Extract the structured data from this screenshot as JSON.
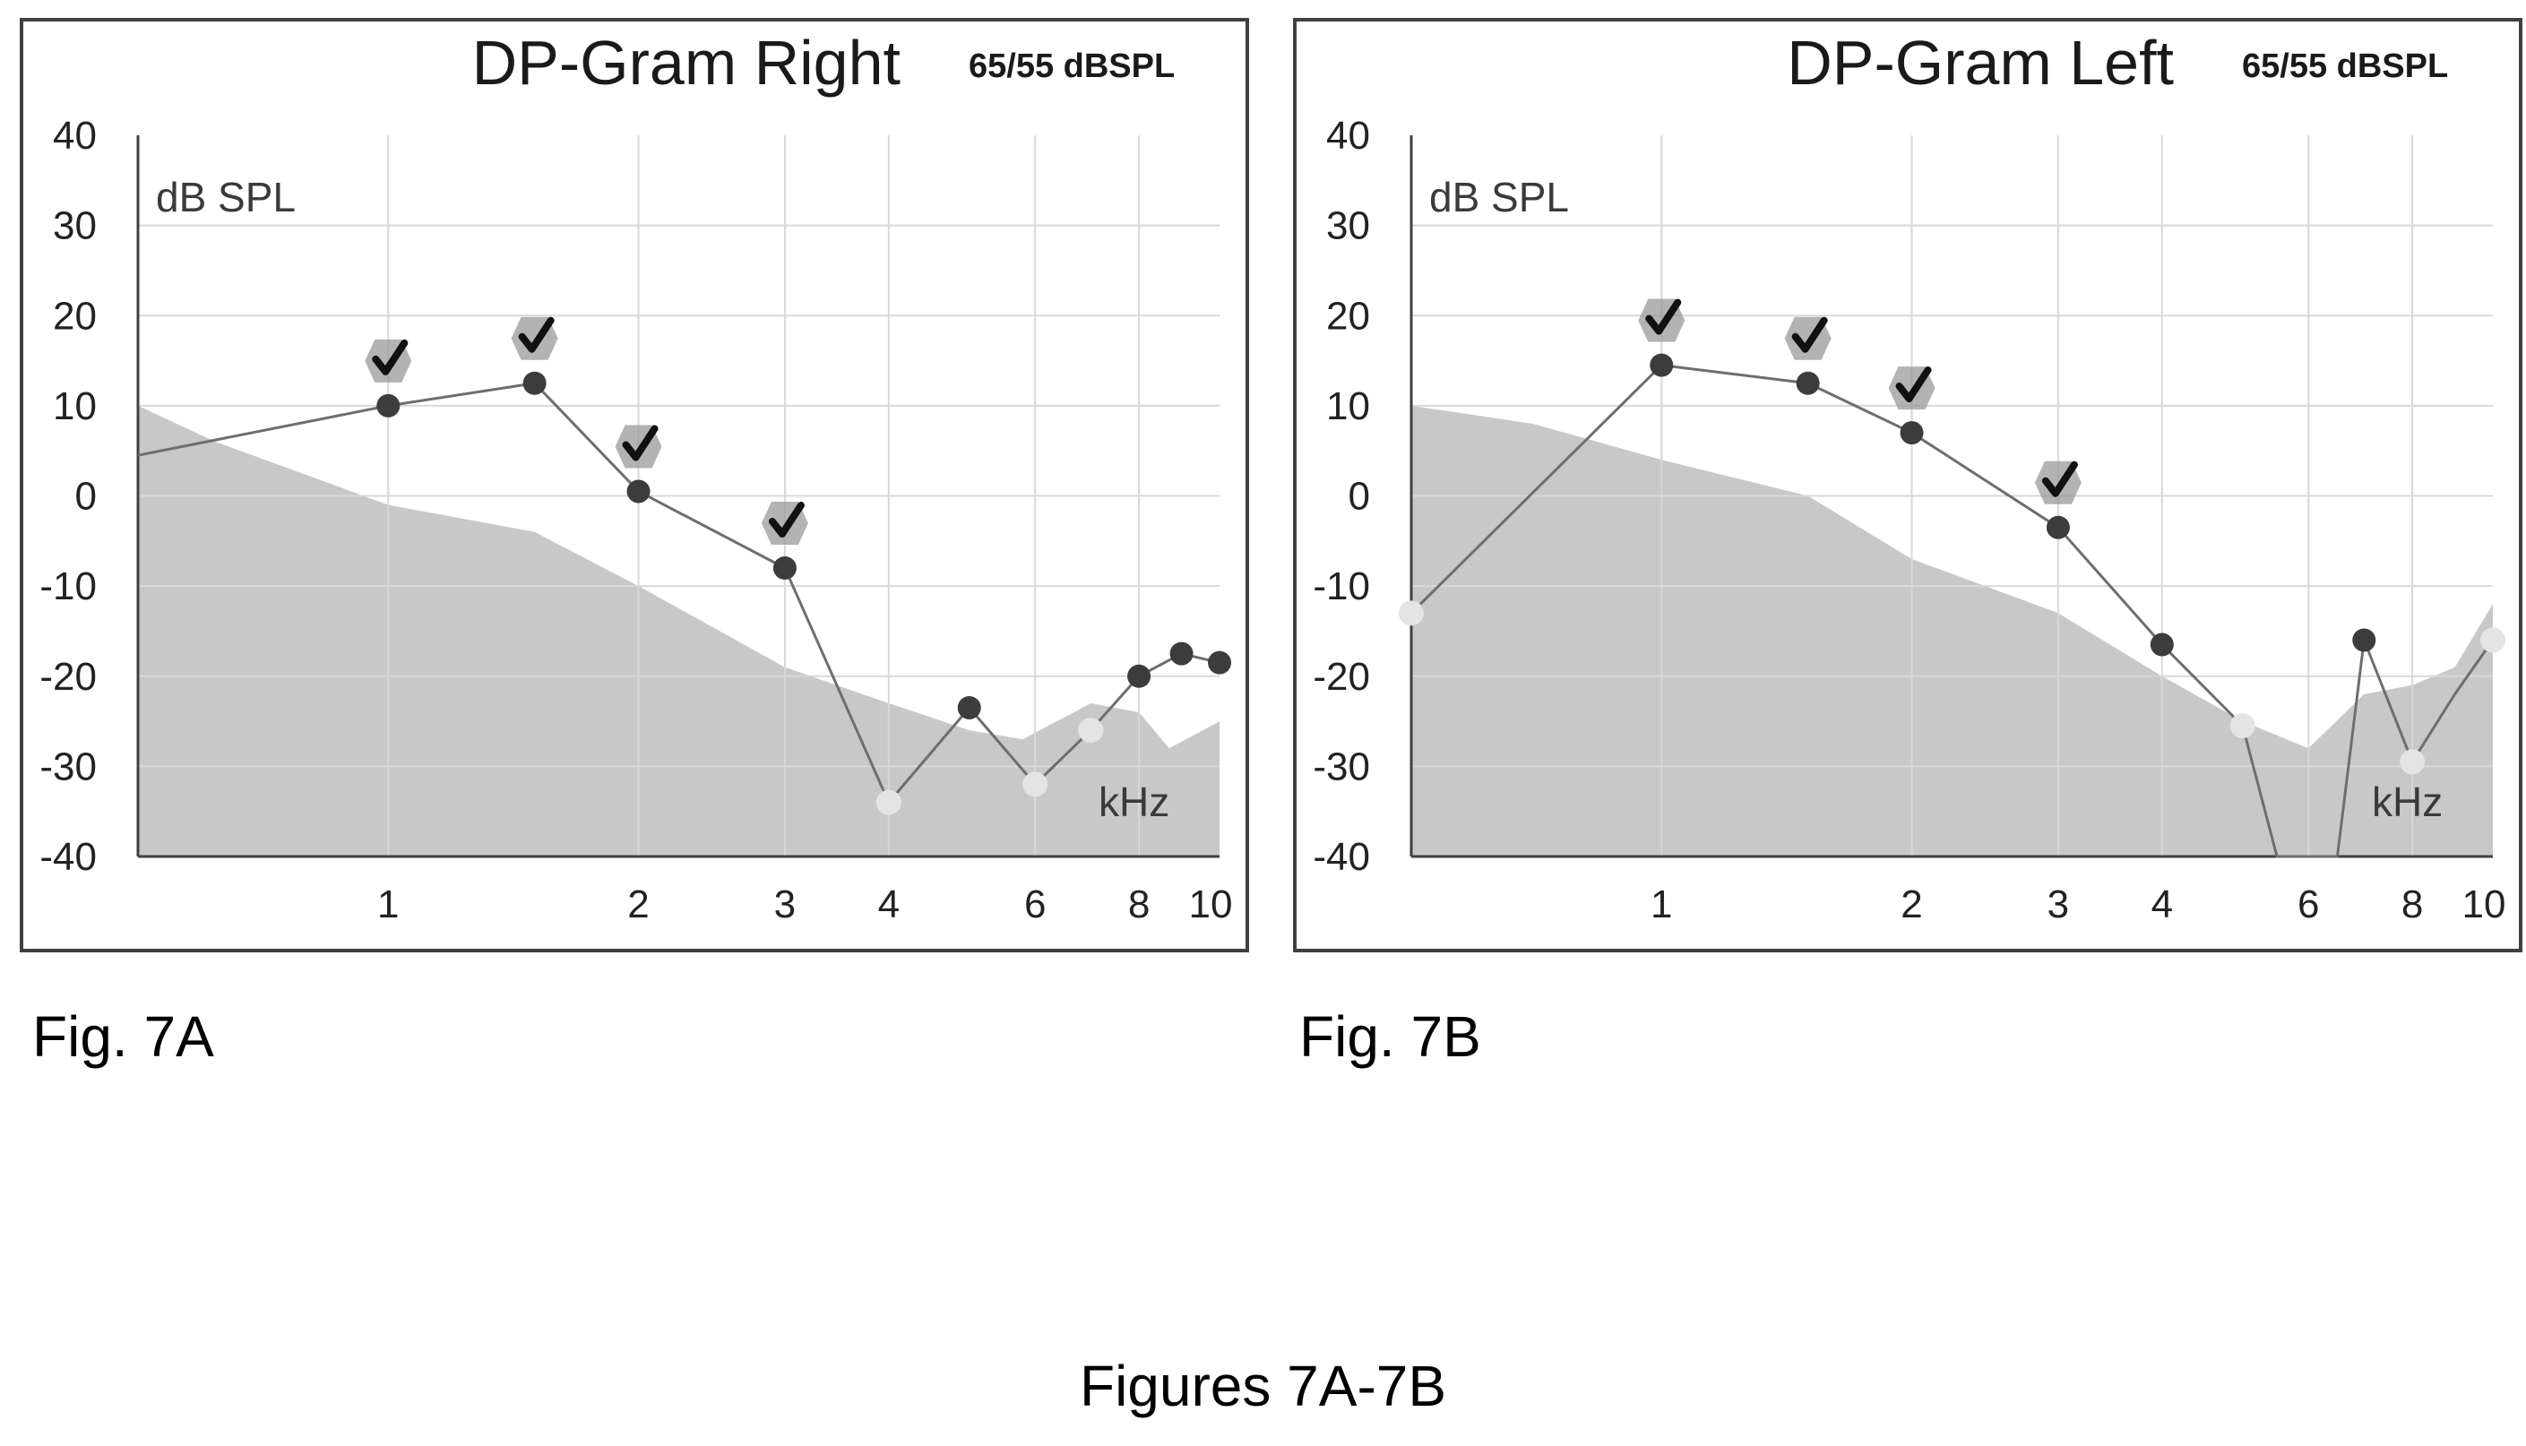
{
  "caption": "Figures 7A-7B",
  "colors": {
    "noise_fill": "#c8c8c8",
    "grid": "#d8d8d8",
    "axis": "#404040",
    "line": "#6e6e6e",
    "point_present": "#3c3c3c",
    "point_absent": "#e4e4e4",
    "check": "#111111"
  },
  "chart_data": [
    {
      "type": "line",
      "figure_label": "Fig. 7A",
      "title": "DP-Gram Right",
      "subtitle": "65/55 dBSPL",
      "ylabel": "dB SPL",
      "xlabel": "kHz",
      "x_scale": "log",
      "xlim": [
        0.5,
        10
      ],
      "ylim": [
        -40,
        40
      ],
      "x_ticks": [
        1,
        2,
        3,
        4,
        6,
        8,
        10
      ],
      "x_tick_labels": [
        "1",
        "2",
        "3",
        "4",
        "6",
        "8",
        "10"
      ],
      "y_ticks": [
        40,
        30,
        20,
        10,
        0,
        -10,
        -20,
        -30,
        -40
      ],
      "y_tick_labels": [
        "40",
        "30",
        "20",
        "10",
        "0",
        "-10",
        "-20",
        "-30",
        "-40"
      ],
      "grid": true,
      "noise_floor": {
        "x": [
          0.5,
          0.62,
          1.0,
          1.5,
          2.0,
          3.0,
          4.0,
          5.0,
          5.8,
          7.0,
          8.0,
          8.7,
          10.0
        ],
        "y": [
          10,
          6,
          -1,
          -4,
          -10,
          -19,
          -23,
          -26,
          -27,
          -23,
          -24,
          -28,
          -25
        ]
      },
      "series": [
        {
          "x": [
            0.5,
            1.0,
            1.5,
            2.0,
            3.0,
            4.0,
            5.0,
            6.0,
            7.0,
            8.0,
            9.0,
            10.0
          ],
          "y": [
            4.5,
            10,
            12.5,
            0.5,
            -8,
            -34,
            -23.5,
            -32,
            -26,
            -20,
            -17.5,
            -18.5
          ],
          "marker": [
            null,
            "present",
            "present",
            "present",
            "present",
            "absent",
            "present",
            "absent",
            "absent",
            "present",
            "present",
            "present"
          ],
          "check": [
            false,
            true,
            true,
            true,
            true,
            false,
            false,
            false,
            false,
            false,
            false,
            false
          ]
        }
      ]
    },
    {
      "type": "line",
      "figure_label": "Fig. 7B",
      "title": "DP-Gram Left",
      "subtitle": "65/55 dBSPL",
      "ylabel": "dB SPL",
      "xlabel": "kHz",
      "x_scale": "log",
      "xlim": [
        0.5,
        10
      ],
      "ylim": [
        -40,
        40
      ],
      "x_ticks": [
        1,
        2,
        3,
        4,
        6,
        8,
        10
      ],
      "x_tick_labels": [
        "1",
        "2",
        "3",
        "4",
        "6",
        "8",
        "10"
      ],
      "y_ticks": [
        40,
        30,
        20,
        10,
        0,
        -10,
        -20,
        -30,
        -40
      ],
      "y_tick_labels": [
        "40",
        "30",
        "20",
        "10",
        "0",
        "-10",
        "-20",
        "-30",
        "-40"
      ],
      "grid": true,
      "noise_floor": {
        "x": [
          0.5,
          0.7,
          1.0,
          1.5,
          2.0,
          3.0,
          4.0,
          5.0,
          6.0,
          7.0,
          8.0,
          9.0,
          10.0
        ],
        "y": [
          10,
          8,
          4,
          0,
          -7,
          -13,
          -20,
          -25,
          -28,
          -22,
          -21,
          -19,
          -12
        ]
      },
      "series": [
        {
          "x": [
            0.5,
            1.0,
            1.5,
            2.0,
            3.0,
            4.0,
            5.0,
            5.5,
            6.5,
            7.0,
            8.0,
            9.0,
            10.0
          ],
          "y": [
            -13,
            14.5,
            12.5,
            7,
            -3.5,
            -16.5,
            -25.5,
            -40,
            -40,
            -16,
            -29.5,
            -22,
            -16
          ],
          "marker": [
            "absent",
            "present",
            "present",
            "present",
            "present",
            "present",
            "absent",
            null,
            null,
            "present",
            "absent",
            null,
            "absent"
          ],
          "check": [
            false,
            true,
            true,
            true,
            true,
            false,
            false,
            false,
            false,
            false,
            false,
            false,
            false
          ]
        }
      ]
    }
  ]
}
